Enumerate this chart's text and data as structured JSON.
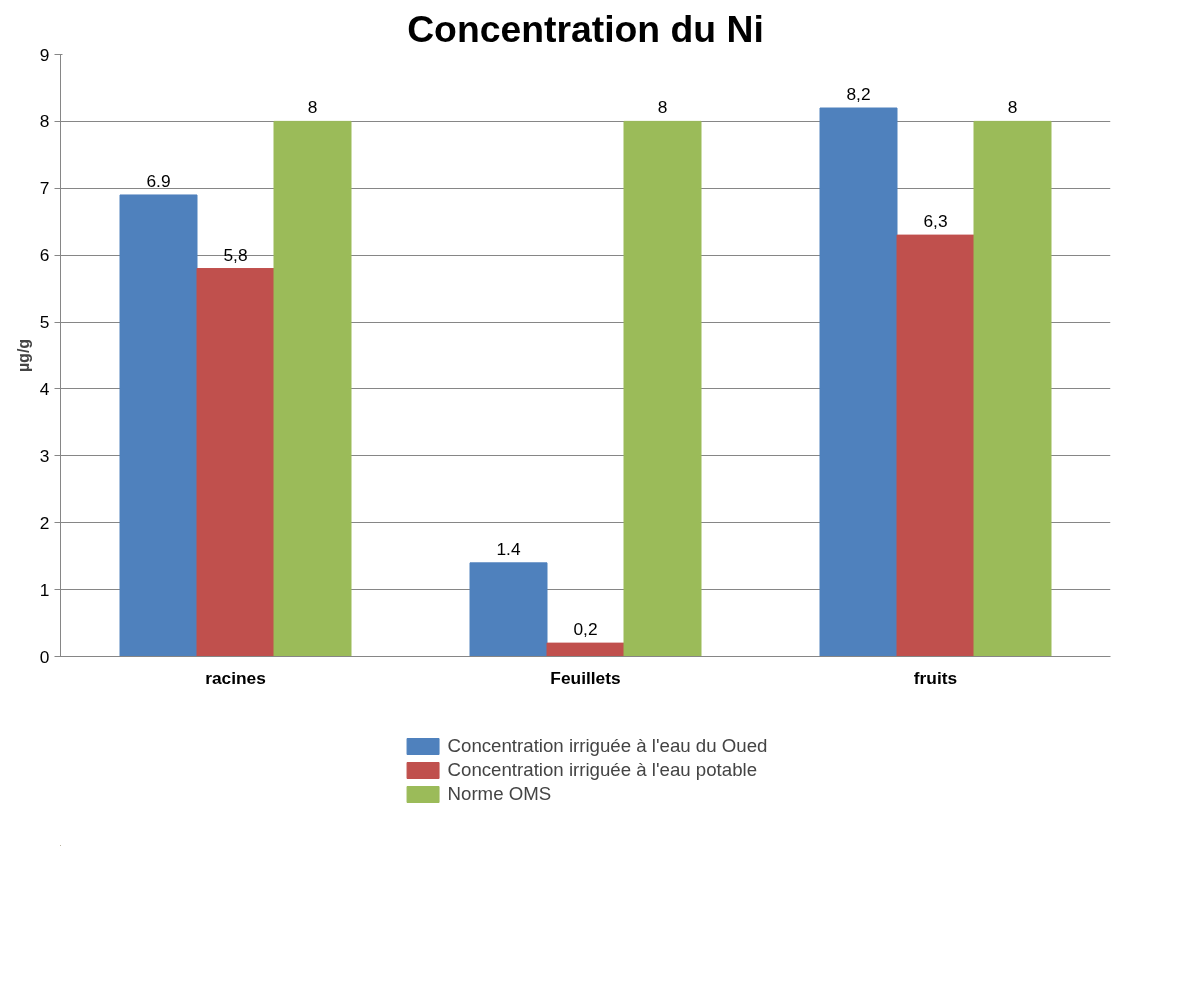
{
  "chart_data": {
    "type": "bar",
    "title": "Concentration du Ni",
    "ylabel": "µg/g",
    "categories": [
      "racines",
      "Feuillets",
      "fruits"
    ],
    "series": [
      {
        "name": "Concentration irriguée à l'eau du Oued",
        "color": "#4f81bd",
        "values": [
          6.9,
          1.4,
          8.2
        ],
        "value_labels": [
          "6.9",
          "1.4",
          "8,2"
        ]
      },
      {
        "name": "Concentration irriguée à l'eau potable",
        "color": "#c0504d",
        "values": [
          5.8,
          0.2,
          6.3
        ],
        "value_labels": [
          "5,8",
          "0,2",
          "6,3"
        ]
      },
      {
        "name": "Norme OMS",
        "color": "#9bbb59",
        "values": [
          8,
          8,
          8
        ],
        "value_labels": [
          "8",
          "8",
          "8"
        ]
      }
    ],
    "ylim": [
      0,
      9
    ],
    "yticks": [
      0,
      1,
      2,
      3,
      4,
      5,
      6,
      7,
      8,
      9
    ],
    "grid": "y",
    "legend": "bottom"
  }
}
